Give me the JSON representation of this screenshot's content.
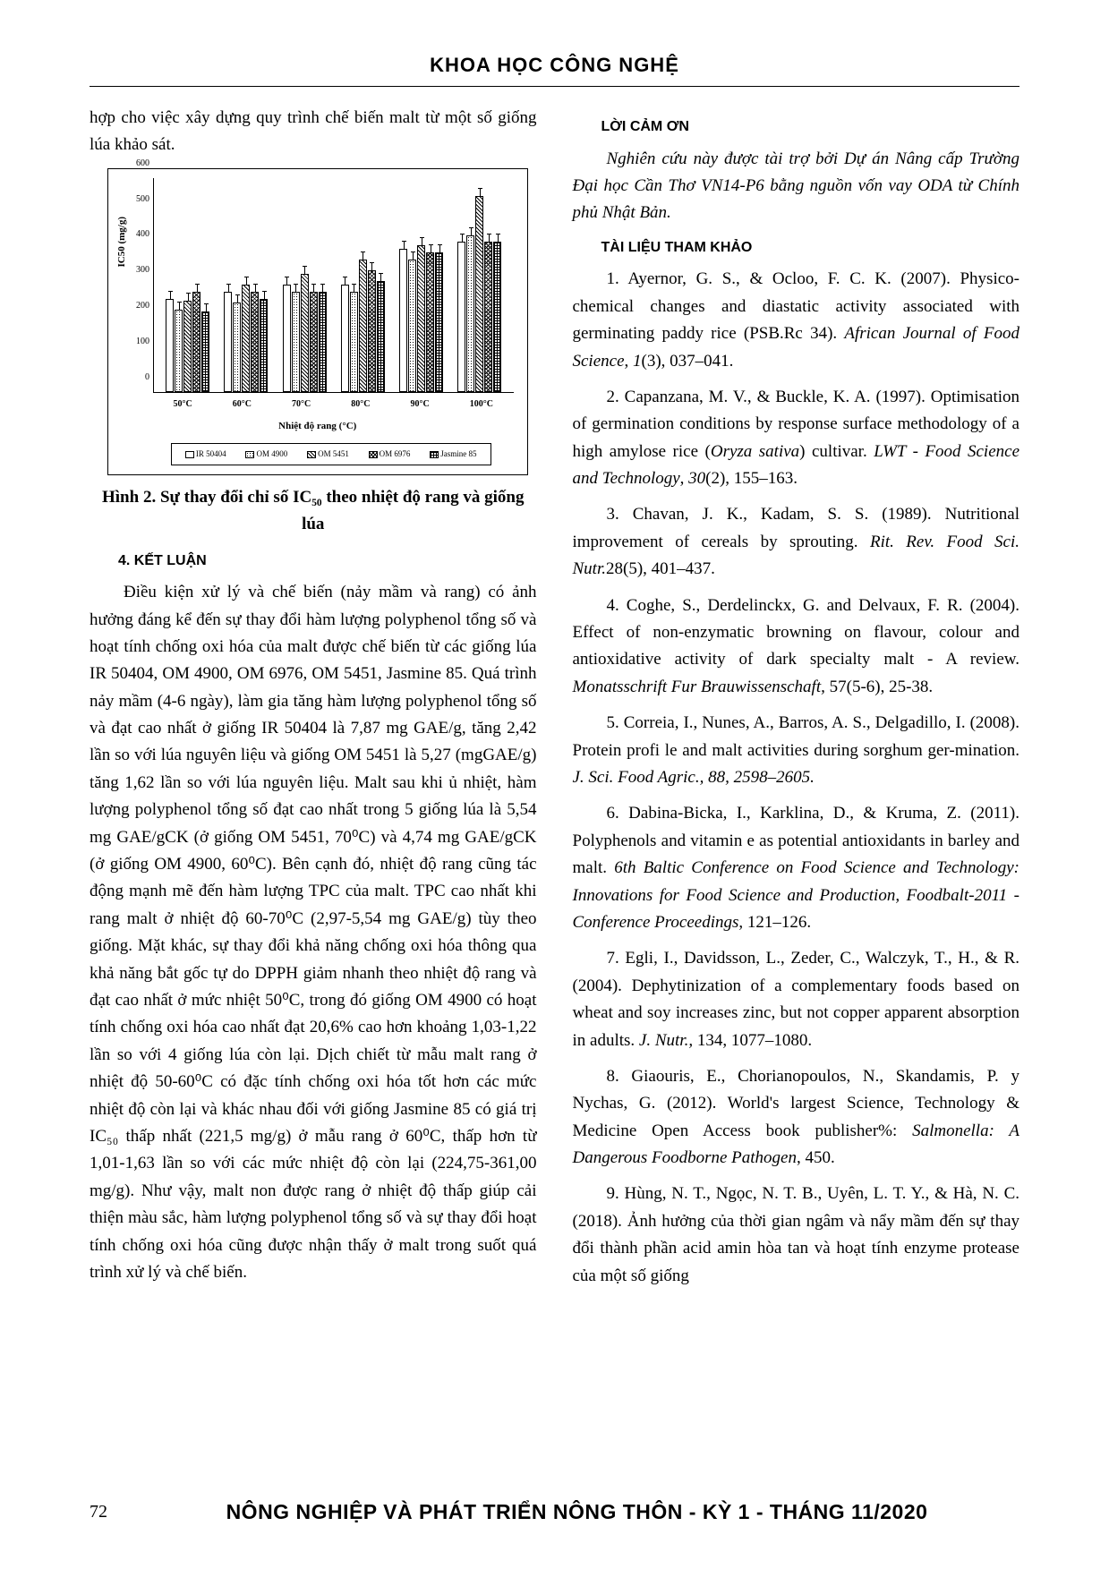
{
  "header": {
    "title": "KHOA HỌC CÔNG NGHỆ"
  },
  "left_intro": "hợp cho việc xây dựng quy trình chế biến malt từ một số giống lúa khảo sát.",
  "chart": {
    "type": "bar",
    "y_label": "IC50 (mg/g)",
    "x_label": "Nhiệt độ rang (°C)",
    "ylim_max": 600,
    "y_ticks": [
      0,
      100,
      200,
      300,
      400,
      500,
      600
    ],
    "categories": [
      "50°C",
      "60°C",
      "70°C",
      "80°C",
      "90°C",
      "100°C"
    ],
    "series": [
      {
        "name": "IR 50404",
        "pattern": "pat-white"
      },
      {
        "name": "OM 4900",
        "pattern": "pat-dots"
      },
      {
        "name": "OM 5451",
        "pattern": "pat-diag"
      },
      {
        "name": "OM 6976",
        "pattern": "pat-check"
      },
      {
        "name": "Jasmine 85",
        "pattern": "pat-grid"
      }
    ],
    "values": [
      [
        260,
        230,
        255,
        280,
        225
      ],
      [
        280,
        250,
        300,
        280,
        260
      ],
      [
        300,
        280,
        330,
        280,
        280
      ],
      [
        300,
        280,
        370,
        340,
        310
      ],
      [
        400,
        370,
        410,
        390,
        390
      ],
      [
        420,
        440,
        550,
        420,
        420
      ]
    ],
    "colors": {
      "axis": "#000000",
      "background": "#ffffff",
      "border": "#000000"
    }
  },
  "fig_caption": "Hình 2. Sự thay đổi chỉ số IC₅₀ theo nhiệt độ rang và giống lúa",
  "section4": "4. KẾT LUẬN",
  "conclusion": "Điều kiện xử lý và chế biến (nảy mầm và rang) có ảnh hưởng đáng kể đến sự thay đổi hàm lượng polyphenol tổng số và hoạt tính chống oxi hóa của malt được chế biến từ các giống lúa IR 50404, OM 4900, OM 6976, OM 5451, Jasmine 85. Quá trình nảy mầm (4-6 ngày), làm gia tăng hàm lượng polyphenol tổng số và đạt cao nhất ở giống IR 50404 là 7,87 mg GAE/g, tăng 2,42 lần so với lúa nguyên liệu và giống OM 5451 là 5,27 (mgGAE/g) tăng 1,62 lần so với lúa nguyên liệu. Malt sau khi ủ nhiệt, hàm lượng polyphenol tổng số đạt cao nhất trong 5 giống lúa là 5,54 mg GAE/gCK (ở giống OM 5451, 70⁰C) và 4,74 mg GAE/gCK (ở giống OM 4900, 60⁰C). Bên cạnh đó, nhiệt độ rang cũng tác động mạnh mẽ đến hàm lượng TPC của malt. TPC cao nhất khi rang malt ở nhiệt độ 60-70⁰C (2,97-5,54 mg GAE/g) tùy theo giống. Mặt khác, sự thay đổi khả năng chống oxi hóa thông qua khả năng bắt gốc tự do DPPH giảm nhanh theo nhiệt độ rang và đạt cao nhất ở mức nhiệt 50⁰C, trong đó giống OM 4900 có hoạt tính chống oxi hóa cao nhất đạt 20,6% cao hơn khoảng 1,03-1,22 lần so với 4 giống lúa còn lại. Dịch chiết từ mẫu malt rang ở nhiệt độ 50-60⁰C có đặc tính chống oxi hóa tốt hơn các mức nhiệt độ còn lại và khác nhau đối với giống Jasmine 85 có giá trị IC₅₀ thấp nhất (221,5 mg/g) ở mẫu rang ở 60⁰C, thấp hơn từ 1,01-1,63 lần so với các mức nhiệt độ còn lại (224,75-361,00 mg/g). Như vậy, malt non được rang ở nhiệt độ thấp giúp cải thiện màu sắc, hàm lượng polyphenol tổng số và sự thay đổi hoạt tính chống oxi hóa cũng được nhận thấy ở malt trong suốt quá trình xử lý và chế biến.",
  "ack_heading": "LỜI CẢM ƠN",
  "ack_text": "Nghiên cứu này được tài trợ bởi Dự án Nâng cấp Trường Đại học Cần Thơ VN14-P6 bằng nguồn vốn vay ODA từ Chính phủ Nhật Bản.",
  "ref_heading": "TÀI LIỆU THAM KHẢO",
  "refs": [
    "1. Ayernor, G. S., & Ocloo, F. C. K. (2007). Physico-chemical changes and diastatic activity associated with germinating paddy rice (PSB.Rc 34). <i>African Journal of Food Science</i>, <i>1</i>(3), 037–041.",
    "2. Capanzana, M. V., & Buckle, K. A. (1997). Optimisation of germination conditions by response surface methodology of a high amylose rice (<i>Oryza sativa</i>) cultivar. <i>LWT - Food Science and Technology</i>, <i>30</i>(2), 155–163.",
    "3. Chavan, J. K., Kadam, S. S. (1989). Nutritional improvement of cereals by sprouting. <i>Rit. Rev. Food Sci. Nutr.</i>28(5), 401–437.",
    "4. Coghe, S., Derdelinckx, G. and Delvaux, F. R. (2004). Effect of non-enzymatic browning on flavour, colour and antioxidative activity of dark specialty malt - A review. <i>Monatsschrift Fur Brauwissenschaft,</i> 57(5-6), 25-38.",
    "5. Correia, I., Nunes, A., Barros, A. S., Delgadillo, I. (2008). Protein profi le and malt activities during sorghum ger-mination. <i>J. Sci. Food Agric., 88, 2598–2605.</i>",
    "6. Dabina-Bicka, I., Karklina, D., & Kruma, Z. (2011). Polyphenols and vitamin e as potential antioxidants in barley and malt. <i>6th Baltic Conference on Food Science and Technology: Innovations for Food Science and Production, Foodbalt-2011 - Conference Proceedings</i>, 121–126.",
    "7. Egli, I., Davidsson, L., Zeder, C., Walczyk, T., H., & R. (2004). Dephytinization of a complementary foods based on wheat and soy increases zinc, but not copper apparent absorption in adults. <i>J. Nutr.,</i> 134, 1077–1080.",
    "8. Giaouris, E., Chorianopoulos, N., Skandamis, P. y Nychas, G. (2012). World's largest Science, Technology & Medicine Open Access book publisher%: <i>Salmonella: A Dangerous Foodborne Pathogen</i>, 450.",
    "9. Hùng, N. T., Ngọc, N. T. B., Uyên, L. T. Y., & Hà, N. C. (2018). Ảnh hưởng của thời gian ngâm và nẩy mầm đến sự thay đổi thành phần acid amin hòa tan và hoạt tính enzyme protease của một số giống"
  ],
  "footer": {
    "page": "72",
    "title": "NÔNG NGHIỆP VÀ PHÁT TRIỂN NÔNG THÔN - KỲ 1 - THÁNG 11/2020"
  }
}
